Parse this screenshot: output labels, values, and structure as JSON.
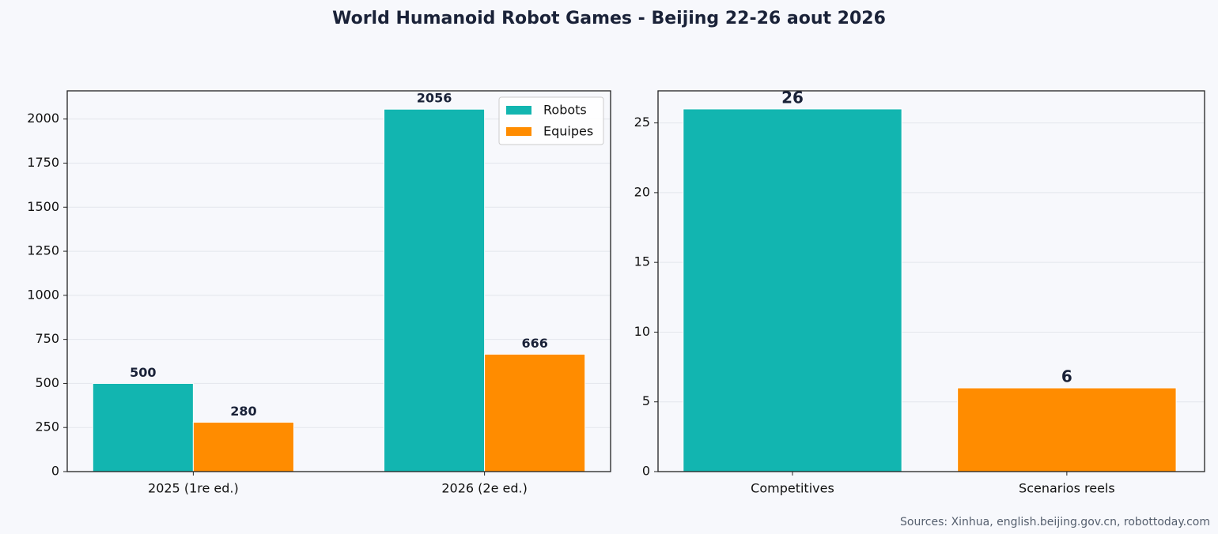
{
  "title": "World Humanoid Robot Games - Beijing 22-26 aout 2026",
  "source": "Sources: Xinhua, english.beijing.gov.cn, robottoday.com",
  "chart_data": [
    {
      "type": "bar",
      "categories": [
        "2025 (1re ed.)",
        "2026 (2e ed.)"
      ],
      "series": [
        {
          "name": "Robots",
          "color": "#12b5b0",
          "values": [
            500,
            2056
          ]
        },
        {
          "name": "Equipes",
          "color": "#ff8c00",
          "values": [
            280,
            666
          ]
        }
      ],
      "ylim": [
        0,
        2160
      ],
      "yticks": [
        0,
        250,
        500,
        750,
        1000,
        1250,
        1500,
        1750,
        2000
      ],
      "grid": true,
      "legend": "upper right"
    },
    {
      "type": "bar",
      "categories": [
        "Competitives",
        "Scenarios reels"
      ],
      "values": [
        26,
        6
      ],
      "colors": [
        "#12b5b0",
        "#ff8c00"
      ],
      "ylim": [
        0,
        27.3
      ],
      "yticks": [
        0,
        5,
        10,
        15,
        20,
        25
      ],
      "grid": true
    }
  ]
}
